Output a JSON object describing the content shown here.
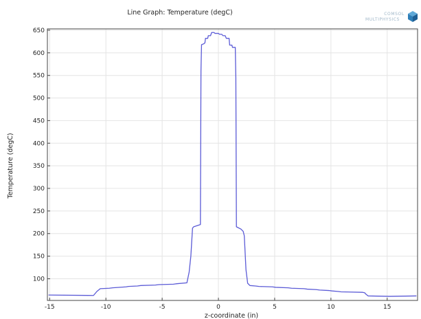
{
  "chart_data": {
    "type": "line",
    "title": "Line Graph: Temperature (degC)",
    "xlabel": "z-coordinate (in)",
    "ylabel": "Temperature (degC)",
    "xlim": [
      -15.2,
      17.7
    ],
    "ylim": [
      52,
      653
    ],
    "x_ticks": [
      -15,
      -10,
      -5,
      0,
      5,
      10,
      15
    ],
    "y_ticks": [
      100,
      150,
      200,
      250,
      300,
      350,
      400,
      450,
      500,
      550,
      600,
      650
    ],
    "grid": true,
    "line_color": "#5a5ad6",
    "series": [
      {
        "x": [
          -15.1,
          -11.1,
          -10.8,
          -10.5,
          -9.7,
          -9.4,
          -8.2,
          -8.0,
          -7.2,
          -6.9,
          -5.6,
          -5.3,
          -4.0,
          -3.7,
          -2.8,
          -2.6,
          -2.45,
          -2.3,
          -2.2,
          -1.6,
          -1.55,
          -1.5,
          -1.3,
          -1.2,
          -1.15,
          -0.95,
          -0.9,
          -0.7,
          -0.6,
          -0.4,
          -0.3,
          0.0,
          0.1,
          0.3,
          0.4,
          0.6,
          0.7,
          0.95,
          1.0,
          1.2,
          1.25,
          1.5,
          1.55,
          1.6,
          2.0,
          2.2,
          2.3,
          2.45,
          2.6,
          2.8,
          3.3,
          3.6,
          4.8,
          5.1,
          6.2,
          6.5,
          7.6,
          7.9,
          8.7,
          9.0,
          9.8,
          10.1,
          10.6,
          10.9,
          12.8,
          13.0,
          13.1,
          13.3,
          15.2,
          17.6
        ],
        "y": [
          64,
          63,
          72,
          78,
          79,
          80,
          82,
          83,
          84,
          85,
          86,
          87,
          88,
          89,
          91,
          115,
          150,
          212,
          215,
          220,
          560,
          618,
          620,
          622,
          632,
          632,
          638,
          638,
          645,
          645,
          643,
          643,
          641,
          641,
          638,
          638,
          632,
          632,
          617,
          617,
          612,
          612,
          545,
          215,
          210,
          205,
          195,
          120,
          90,
          85,
          84,
          83,
          82,
          81,
          80,
          79,
          78,
          77,
          76,
          75,
          74,
          73,
          72,
          71,
          70,
          69,
          66,
          62,
          61,
          62
        ]
      }
    ]
  },
  "logo": {
    "line1": "COMSOL",
    "line2": "MULTIPHYSICS"
  }
}
